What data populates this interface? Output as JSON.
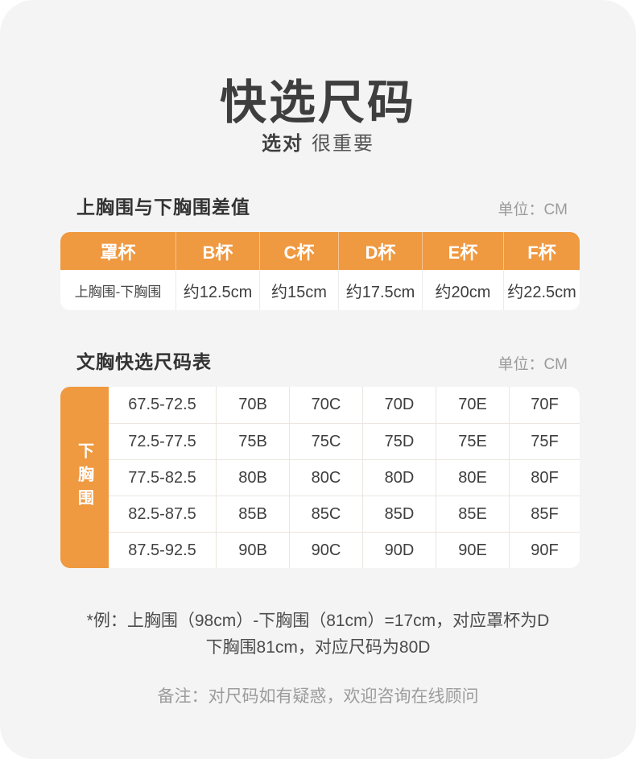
{
  "page": {
    "title": "快选尺码",
    "subtitle_bold": "选对",
    "subtitle_rest": "很重要"
  },
  "colors": {
    "accent_orange": "#EF9940",
    "card_background": "#F4F4F5",
    "text_dark": "#3E3E3E",
    "text_gray": "#9B9B9B"
  },
  "diff_section": {
    "heading": "上胸围与下胸围差值",
    "unit_label": "单位：CM",
    "table": {
      "headers": [
        "罩杯",
        "B杯",
        "C杯",
        "D杯",
        "E杯",
        "F杯"
      ],
      "row_label": "上胸围-下胸围",
      "values": [
        "约12.5cm",
        "约15cm",
        "约17.5cm",
        "约20cm",
        "约22.5cm"
      ]
    }
  },
  "size_section": {
    "heading": "文胸快选尺码表",
    "unit_label": "单位：CM",
    "side_label": "下胸围",
    "table": {
      "rows": [
        {
          "range": "67.5-72.5",
          "sizes": [
            "70B",
            "70C",
            "70D",
            "70E",
            "70F"
          ]
        },
        {
          "range": "72.5-77.5",
          "sizes": [
            "75B",
            "75C",
            "75D",
            "75E",
            "75F"
          ]
        },
        {
          "range": "77.5-82.5",
          "sizes": [
            "80B",
            "80C",
            "80D",
            "80E",
            "80F"
          ]
        },
        {
          "range": "82.5-87.5",
          "sizes": [
            "85B",
            "85C",
            "85D",
            "85E",
            "85F"
          ]
        },
        {
          "range": "87.5-92.5",
          "sizes": [
            "90B",
            "90C",
            "90D",
            "90E",
            "90F"
          ]
        }
      ]
    }
  },
  "notes": {
    "example_line1": "*例：上胸围（98cm）-下胸围（81cm）=17cm，对应罩杯为D",
    "example_line2": "下胸围81cm，对应尺码为80D",
    "remark": "备注：对尺码如有疑惑，欢迎咨询在线顾问"
  }
}
